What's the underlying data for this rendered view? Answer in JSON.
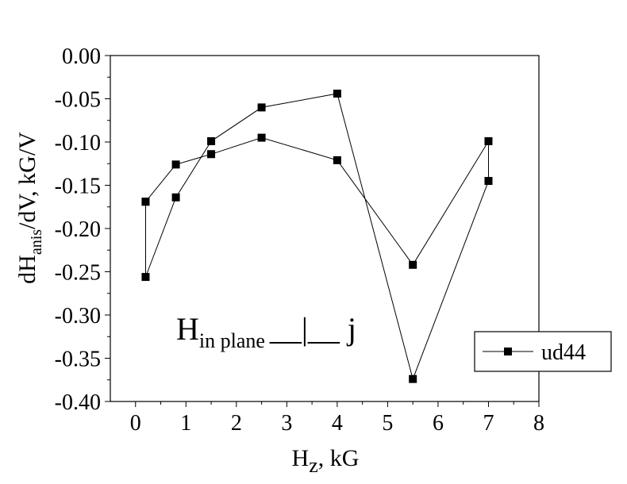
{
  "chart_data": {
    "type": "line",
    "title": "",
    "xlabel": {
      "main": "H",
      "sub": "z",
      "rest": ", kG"
    },
    "ylabel": {
      "main": "dH",
      "sub": "anis",
      "rest": "/dV, kG/V"
    },
    "xlim": [
      -0.5,
      8
    ],
    "ylim": [
      -0.4,
      0.0
    ],
    "x_ticks": [
      "0",
      "1",
      "2",
      "3",
      "4",
      "5",
      "6",
      "7",
      "8"
    ],
    "y_ticks": [
      "0.00",
      "-0.05",
      "-0.10",
      "-0.15",
      "-0.20",
      "-0.25",
      "-0.30",
      "-0.35",
      "-0.40"
    ],
    "annotation": {
      "main": "H",
      "sub": "in plane",
      "symbol": "__|__ j"
    },
    "legend": {
      "position": "bottom-right",
      "entries": [
        "ud44"
      ]
    },
    "grid": false,
    "series": [
      {
        "name": "ud44",
        "marker": "square",
        "color": "#000000",
        "x": [
          0.2,
          0.2,
          0.8,
          1.5,
          2.5,
          4.0,
          5.5,
          7.0,
          7.0,
          5.5,
          4.0,
          2.5,
          1.5,
          0.8,
          0.2
        ],
        "y": [
          -0.169,
          -0.256,
          -0.164,
          -0.099,
          -0.06,
          -0.044,
          -0.374,
          -0.145,
          -0.099,
          -0.242,
          -0.121,
          -0.095,
          -0.114,
          -0.126,
          -0.169
        ]
      }
    ]
  }
}
